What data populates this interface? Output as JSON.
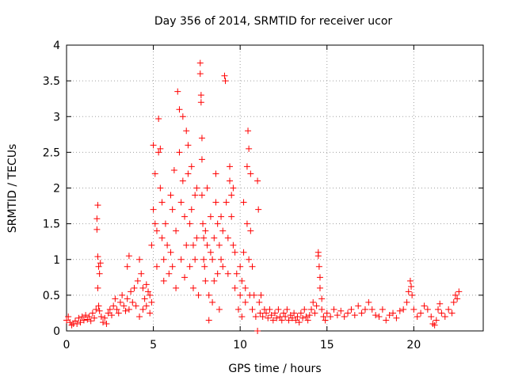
{
  "chart_data": {
    "type": "scatter",
    "title": "Day 356 of 2014, SRMTID for receiver ucor",
    "xlabel": "GPS time / hours",
    "ylabel": "SRMTID / TECUs",
    "xlim": [
      0,
      24
    ],
    "ylim": [
      0,
      4
    ],
    "xticks": [
      0,
      5,
      10,
      15,
      20
    ],
    "xtick_labels": [
      "0",
      "5",
      "10",
      "15",
      "20"
    ],
    "yticks": [
      0,
      0.5,
      1,
      1.5,
      2,
      2.5,
      3,
      3.5,
      4
    ],
    "ytick_labels": [
      "0",
      "0.5",
      "1",
      "1.5",
      "2",
      "2.5",
      "3",
      "3.5",
      "4"
    ],
    "grid": true,
    "marker": "plus",
    "marker_color": "#ff0000",
    "series": [
      {
        "name": "SRMTID",
        "points": [
          [
            0.0,
            0.15
          ],
          [
            0.1,
            0.2
          ],
          [
            0.2,
            0.12
          ],
          [
            0.3,
            0.08
          ],
          [
            0.4,
            0.1
          ],
          [
            0.5,
            0.14
          ],
          [
            0.6,
            0.1
          ],
          [
            0.7,
            0.18
          ],
          [
            0.8,
            0.12
          ],
          [
            0.9,
            0.2
          ],
          [
            1.0,
            0.15
          ],
          [
            1.1,
            0.22
          ],
          [
            1.2,
            0.16
          ],
          [
            1.3,
            0.2
          ],
          [
            1.4,
            0.14
          ],
          [
            1.5,
            0.25
          ],
          [
            1.6,
            0.18
          ],
          [
            1.7,
            0.3
          ],
          [
            1.8,
            1.76
          ],
          [
            1.75,
            1.57
          ],
          [
            1.75,
            1.42
          ],
          [
            1.8,
            1.04
          ],
          [
            1.85,
            0.9
          ],
          [
            1.9,
            0.8
          ],
          [
            1.95,
            0.95
          ],
          [
            1.8,
            0.6
          ],
          [
            1.85,
            0.35
          ],
          [
            1.9,
            0.28
          ],
          [
            2.0,
            0.2
          ],
          [
            2.1,
            0.12
          ],
          [
            2.2,
            0.18
          ],
          [
            2.3,
            0.1
          ],
          [
            2.4,
            0.25
          ],
          [
            2.5,
            0.3
          ],
          [
            2.6,
            0.22
          ],
          [
            2.7,
            0.35
          ],
          [
            2.8,
            0.45
          ],
          [
            2.9,
            0.3
          ],
          [
            3.0,
            0.25
          ],
          [
            3.1,
            0.4
          ],
          [
            3.2,
            0.5
          ],
          [
            3.3,
            0.35
          ],
          [
            3.4,
            0.28
          ],
          [
            3.5,
            0.45
          ],
          [
            3.6,
            0.3
          ],
          [
            3.7,
            0.55
          ],
          [
            3.8,
            0.4
          ],
          [
            3.9,
            0.6
          ],
          [
            3.5,
            0.9
          ],
          [
            3.6,
            1.05
          ],
          [
            4.0,
            0.35
          ],
          [
            4.1,
            0.7
          ],
          [
            4.2,
            1.0
          ],
          [
            4.3,
            0.8
          ],
          [
            4.4,
            0.6
          ],
          [
            4.5,
            0.45
          ],
          [
            4.6,
            0.65
          ],
          [
            4.7,
            0.55
          ],
          [
            4.8,
            0.5
          ],
          [
            4.9,
            0.4
          ],
          [
            4.2,
            0.2
          ],
          [
            4.4,
            0.3
          ],
          [
            4.6,
            0.35
          ],
          [
            4.8,
            0.25
          ],
          [
            4.9,
            1.2
          ],
          [
            5.0,
            1.7
          ],
          [
            5.0,
            2.6
          ],
          [
            5.1,
            2.2
          ],
          [
            5.1,
            1.5
          ],
          [
            5.2,
            0.9
          ],
          [
            5.2,
            1.4
          ],
          [
            5.3,
            2.97
          ],
          [
            5.3,
            2.5
          ],
          [
            5.4,
            2.55
          ],
          [
            5.4,
            2.0
          ],
          [
            5.5,
            1.3
          ],
          [
            5.5,
            1.8
          ],
          [
            5.6,
            1.0
          ],
          [
            5.6,
            0.7
          ],
          [
            5.7,
            1.5
          ],
          [
            5.8,
            1.2
          ],
          [
            5.9,
            0.8
          ],
          [
            6.0,
            1.9
          ],
          [
            6.0,
            1.1
          ],
          [
            6.1,
            1.7
          ],
          [
            6.1,
            0.9
          ],
          [
            6.2,
            2.25
          ],
          [
            6.3,
            1.4
          ],
          [
            6.3,
            0.6
          ],
          [
            6.4,
            3.35
          ],
          [
            6.5,
            3.1
          ],
          [
            6.5,
            2.5
          ],
          [
            6.6,
            1.8
          ],
          [
            6.6,
            1.0
          ],
          [
            6.7,
            3.0
          ],
          [
            6.7,
            2.1
          ],
          [
            6.8,
            1.6
          ],
          [
            6.8,
            0.75
          ],
          [
            6.9,
            2.8
          ],
          [
            6.9,
            1.2
          ],
          [
            7.0,
            2.6
          ],
          [
            7.0,
            2.2
          ],
          [
            7.1,
            1.5
          ],
          [
            7.1,
            0.9
          ],
          [
            7.2,
            2.3
          ],
          [
            7.2,
            1.7
          ],
          [
            7.3,
            1.2
          ],
          [
            7.3,
            0.6
          ],
          [
            7.4,
            1.9
          ],
          [
            7.4,
            1.0
          ],
          [
            7.5,
            2.0
          ],
          [
            7.5,
            1.3
          ],
          [
            7.6,
            0.5
          ],
          [
            7.7,
            3.75
          ],
          [
            7.7,
            3.6
          ],
          [
            7.75,
            3.3
          ],
          [
            7.75,
            3.2
          ],
          [
            7.8,
            2.7
          ],
          [
            7.8,
            2.4
          ],
          [
            7.8,
            1.9
          ],
          [
            7.85,
            1.5
          ],
          [
            7.9,
            1.3
          ],
          [
            7.9,
            1.0
          ],
          [
            7.95,
            0.9
          ],
          [
            8.0,
            1.4
          ],
          [
            8.0,
            0.7
          ],
          [
            8.1,
            1.2
          ],
          [
            8.1,
            2.0
          ],
          [
            8.2,
            0.15
          ],
          [
            8.2,
            0.5
          ],
          [
            8.3,
            1.6
          ],
          [
            8.3,
            1.1
          ],
          [
            8.4,
            1.0
          ],
          [
            8.4,
            0.4
          ],
          [
            8.5,
            1.3
          ],
          [
            8.5,
            0.7
          ],
          [
            8.6,
            2.2
          ],
          [
            8.6,
            1.8
          ],
          [
            8.7,
            1.5
          ],
          [
            8.7,
            0.8
          ],
          [
            8.8,
            1.2
          ],
          [
            8.8,
            0.3
          ],
          [
            8.9,
            1.0
          ],
          [
            8.9,
            1.6
          ],
          [
            9.0,
            1.4
          ],
          [
            9.0,
            0.9
          ],
          [
            9.1,
            3.57
          ],
          [
            9.15,
            3.5
          ],
          [
            9.2,
            1.8
          ],
          [
            9.3,
            1.3
          ],
          [
            9.3,
            0.8
          ],
          [
            9.4,
            2.3
          ],
          [
            9.4,
            2.1
          ],
          [
            9.5,
            1.9
          ],
          [
            9.5,
            1.6
          ],
          [
            9.6,
            2.0
          ],
          [
            9.6,
            1.2
          ],
          [
            9.7,
            0.6
          ],
          [
            9.7,
            1.1
          ],
          [
            9.8,
            0.8
          ],
          [
            9.9,
            0.3
          ],
          [
            10.0,
            0.9
          ],
          [
            10.0,
            0.5
          ],
          [
            10.1,
            0.7
          ],
          [
            10.1,
            0.2
          ],
          [
            10.2,
            1.8
          ],
          [
            10.2,
            1.1
          ],
          [
            10.3,
            0.6
          ],
          [
            10.3,
            0.4
          ],
          [
            10.4,
            2.3
          ],
          [
            10.4,
            1.5
          ],
          [
            10.45,
            2.8
          ],
          [
            10.5,
            2.55
          ],
          [
            10.5,
            1.0
          ],
          [
            10.55,
            0.5
          ],
          [
            10.6,
            2.2
          ],
          [
            10.6,
            1.4
          ],
          [
            10.7,
            0.3
          ],
          [
            10.7,
            0.9
          ],
          [
            10.8,
            0.5
          ],
          [
            10.9,
            0.2
          ],
          [
            11.0,
            0.0
          ],
          [
            11.0,
            2.1
          ],
          [
            11.05,
            1.7
          ],
          [
            11.1,
            0.4
          ],
          [
            11.15,
            0.25
          ],
          [
            11.2,
            0.5
          ],
          [
            11.3,
            0.2
          ],
          [
            11.4,
            0.3
          ],
          [
            11.5,
            0.25
          ],
          [
            11.6,
            0.18
          ],
          [
            11.7,
            0.3
          ],
          [
            11.8,
            0.22
          ],
          [
            11.9,
            0.15
          ],
          [
            12.0,
            0.25
          ],
          [
            12.1,
            0.18
          ],
          [
            12.2,
            0.3
          ],
          [
            12.3,
            0.2
          ],
          [
            12.4,
            0.15
          ],
          [
            12.5,
            0.25
          ],
          [
            12.6,
            0.2
          ],
          [
            12.7,
            0.3
          ],
          [
            12.8,
            0.15
          ],
          [
            12.9,
            0.22
          ],
          [
            13.0,
            0.18
          ],
          [
            13.1,
            0.25
          ],
          [
            13.2,
            0.15
          ],
          [
            13.3,
            0.2
          ],
          [
            13.4,
            0.12
          ],
          [
            13.5,
            0.25
          ],
          [
            13.6,
            0.18
          ],
          [
            13.7,
            0.3
          ],
          [
            13.8,
            0.2
          ],
          [
            13.9,
            0.15
          ],
          [
            14.0,
            0.22
          ],
          [
            14.1,
            0.3
          ],
          [
            14.2,
            0.4
          ],
          [
            14.3,
            0.25
          ],
          [
            14.4,
            0.35
          ],
          [
            14.5,
            1.1
          ],
          [
            14.5,
            1.05
          ],
          [
            14.55,
            0.9
          ],
          [
            14.6,
            0.75
          ],
          [
            14.6,
            0.6
          ],
          [
            14.7,
            0.45
          ],
          [
            14.7,
            0.3
          ],
          [
            14.8,
            0.2
          ],
          [
            14.9,
            0.15
          ],
          [
            15.0,
            0.25
          ],
          [
            15.2,
            0.2
          ],
          [
            15.4,
            0.3
          ],
          [
            15.6,
            0.22
          ],
          [
            15.8,
            0.28
          ],
          [
            16.0,
            0.2
          ],
          [
            16.2,
            0.25
          ],
          [
            16.4,
            0.3
          ],
          [
            16.6,
            0.22
          ],
          [
            16.8,
            0.35
          ],
          [
            17.0,
            0.25
          ],
          [
            17.2,
            0.3
          ],
          [
            17.4,
            0.4
          ],
          [
            17.6,
            0.3
          ],
          [
            17.8,
            0.22
          ],
          [
            18.0,
            0.2
          ],
          [
            18.2,
            0.3
          ],
          [
            18.4,
            0.15
          ],
          [
            18.6,
            0.22
          ],
          [
            18.8,
            0.25
          ],
          [
            19.0,
            0.18
          ],
          [
            19.2,
            0.28
          ],
          [
            19.4,
            0.3
          ],
          [
            19.6,
            0.4
          ],
          [
            19.7,
            0.55
          ],
          [
            19.8,
            0.7
          ],
          [
            19.85,
            0.62
          ],
          [
            19.9,
            0.5
          ],
          [
            20.0,
            0.3
          ],
          [
            20.2,
            0.2
          ],
          [
            20.4,
            0.25
          ],
          [
            20.6,
            0.35
          ],
          [
            20.8,
            0.3
          ],
          [
            21.0,
            0.2
          ],
          [
            21.1,
            0.1
          ],
          [
            21.2,
            0.08
          ],
          [
            21.3,
            0.15
          ],
          [
            21.4,
            0.3
          ],
          [
            21.5,
            0.38
          ],
          [
            21.6,
            0.25
          ],
          [
            21.8,
            0.2
          ],
          [
            22.0,
            0.3
          ],
          [
            22.2,
            0.25
          ],
          [
            22.3,
            0.4
          ],
          [
            22.4,
            0.5
          ],
          [
            22.5,
            0.45
          ],
          [
            22.6,
            0.55
          ]
        ]
      }
    ]
  }
}
